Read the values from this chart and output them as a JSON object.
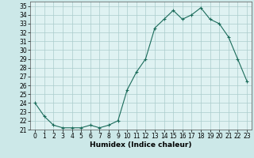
{
  "x": [
    0,
    1,
    2,
    3,
    4,
    5,
    6,
    7,
    8,
    9,
    10,
    11,
    12,
    13,
    14,
    15,
    16,
    17,
    18,
    19,
    20,
    21,
    22,
    23
  ],
  "y": [
    24.0,
    22.5,
    21.5,
    21.2,
    21.2,
    21.2,
    21.5,
    21.2,
    21.5,
    22.0,
    25.5,
    27.5,
    29.0,
    32.5,
    33.5,
    34.5,
    33.5,
    34.0,
    34.8,
    33.5,
    33.0,
    31.5,
    29.0,
    26.5
  ],
  "xlabel": "Humidex (Indice chaleur)",
  "xlim": [
    -0.5,
    23.5
  ],
  "ylim": [
    21,
    35.5
  ],
  "yticks": [
    21,
    22,
    23,
    24,
    25,
    26,
    27,
    28,
    29,
    30,
    31,
    32,
    33,
    34,
    35
  ],
  "xticks": [
    0,
    1,
    2,
    3,
    4,
    5,
    6,
    7,
    8,
    9,
    10,
    11,
    12,
    13,
    14,
    15,
    16,
    17,
    18,
    19,
    20,
    21,
    22,
    23
  ],
  "line_color": "#1a6b5a",
  "marker": "+",
  "bg_color": "#cce8e8",
  "grid_color": "#aacccc",
  "plot_bg": "#dff2f2",
  "tick_label_fontsize": 5.5,
  "xlabel_fontsize": 6.5
}
